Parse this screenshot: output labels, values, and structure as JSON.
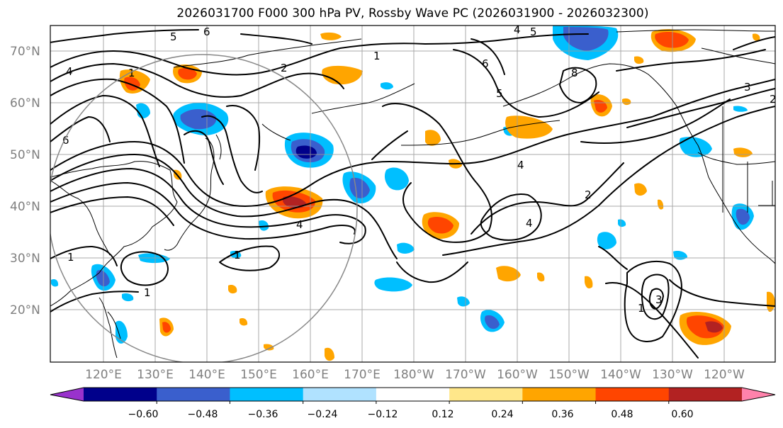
{
  "title": "2026031700 F000 300 hPa PV, Rossby Wave PC (2026031900 - 2026032300)",
  "latitude_labels": [
    "70°N",
    "60°N",
    "50°N",
    "40°N",
    "30°N",
    "20°N"
  ],
  "longitude_labels": [
    "120°E",
    "130°E",
    "140°E",
    "150°E",
    "160°E",
    "170°E",
    "180°W",
    "170°W",
    "160°W",
    "150°W",
    "140°W",
    "130°W",
    "120°W"
  ],
  "colorbar": {
    "tick_labels": [
      "−0.60",
      "−0.48",
      "−0.36",
      "−0.24",
      "−0.12",
      "0.12",
      "0.24",
      "0.36",
      "0.48",
      "0.60"
    ],
    "colors": [
      "#9932cc",
      "#00008b",
      "#3a5fcd",
      "#00bfff",
      "#b0e2ff",
      "#ffffff",
      "#ffe78a",
      "#ffa500",
      "#ff4500",
      "#b22222",
      "#ff82ab"
    ]
  },
  "contour_labels": [
    "5",
    "6",
    "4",
    "2",
    "1",
    "1",
    "4",
    "5",
    "6",
    "8",
    "5",
    "4",
    "3",
    "6",
    "1",
    "2",
    "4",
    "1",
    "1",
    "1",
    "2",
    "3",
    "4"
  ],
  "map": {
    "projection": "Plate Carree (Pacific-centered)",
    "region": "North Pacific, 10°N–75°N, 110°E–110°W"
  }
}
